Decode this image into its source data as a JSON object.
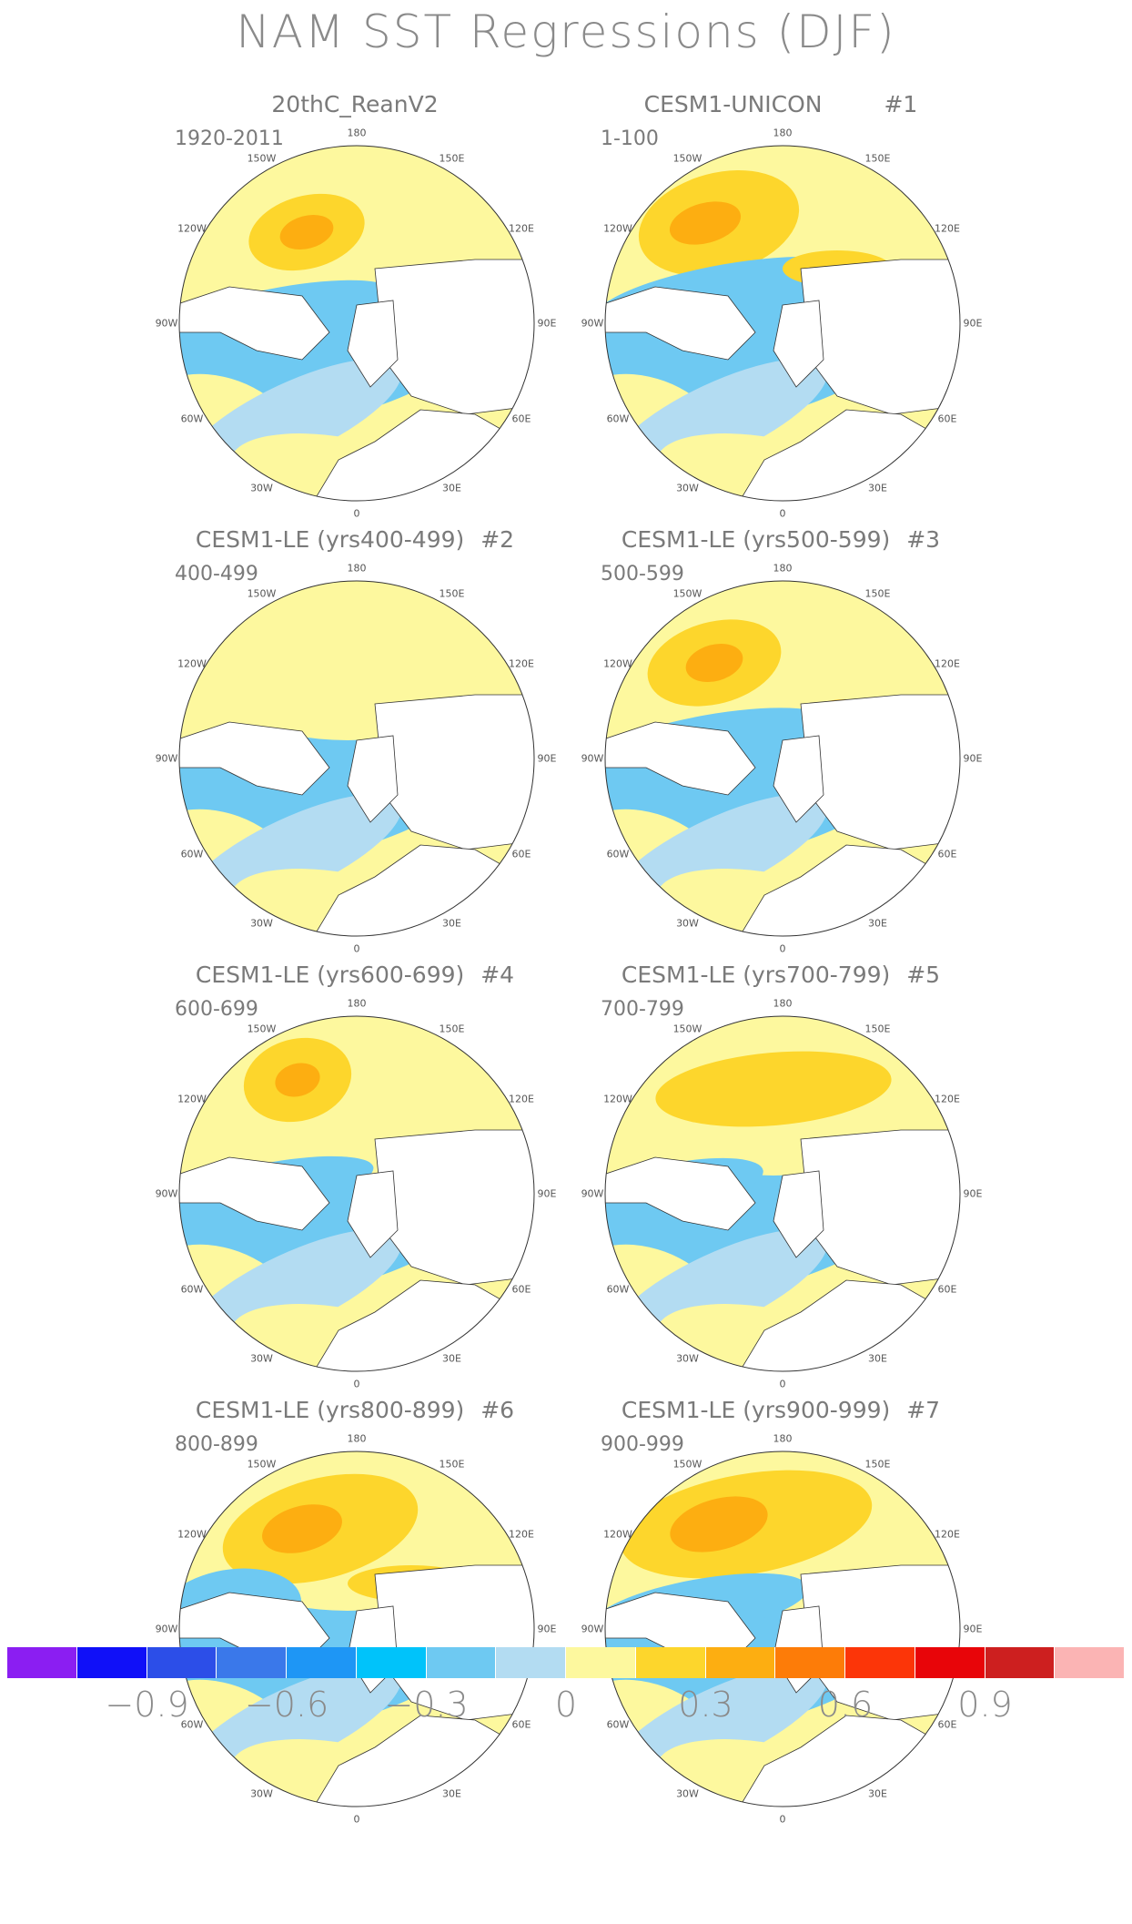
{
  "title": "NAM SST Regressions (DJF)",
  "panels": [
    {
      "title": "20thC_ReanV2",
      "number": "",
      "period": "1920-2011"
    },
    {
      "title": "CESM1-UNICON",
      "number": "#1",
      "period": "1-100"
    },
    {
      "title": "CESM1-LE (yrs400-499)",
      "number": "#2",
      "period": "400-499"
    },
    {
      "title": "CESM1-LE (yrs500-599)",
      "number": "#3",
      "period": "500-599"
    },
    {
      "title": "CESM1-LE (yrs600-699)",
      "number": "#4",
      "period": "600-699"
    },
    {
      "title": "CESM1-LE (yrs700-799)",
      "number": "#5",
      "period": "700-799"
    },
    {
      "title": "CESM1-LE (yrs800-899)",
      "number": "#6",
      "period": "800-899"
    },
    {
      "title": "CESM1-LE (yrs900-999)",
      "number": "#7",
      "period": "900-999"
    }
  ],
  "longitude_labels": [
    "180",
    "150E",
    "120E",
    "90E",
    "60E",
    "30E",
    "0",
    "30W",
    "60W",
    "90W",
    "120W",
    "150W"
  ],
  "colorbar": {
    "colors": [
      "#8b1ef2",
      "#1010f8",
      "#2c4ee8",
      "#3a78ea",
      "#1e96f5",
      "#00c3fa",
      "#6ec9f2",
      "#b3dcf2",
      "#fdf89e",
      "#fdd62c",
      "#fdae11",
      "#fd7c08",
      "#fc3508",
      "#e80509",
      "#cd1f1f",
      "#fbb4b4"
    ],
    "tick_labels": [
      "−0.9",
      "−0.6",
      "−0.3",
      "0",
      "0.3",
      "0.6",
      "0.9"
    ]
  }
}
